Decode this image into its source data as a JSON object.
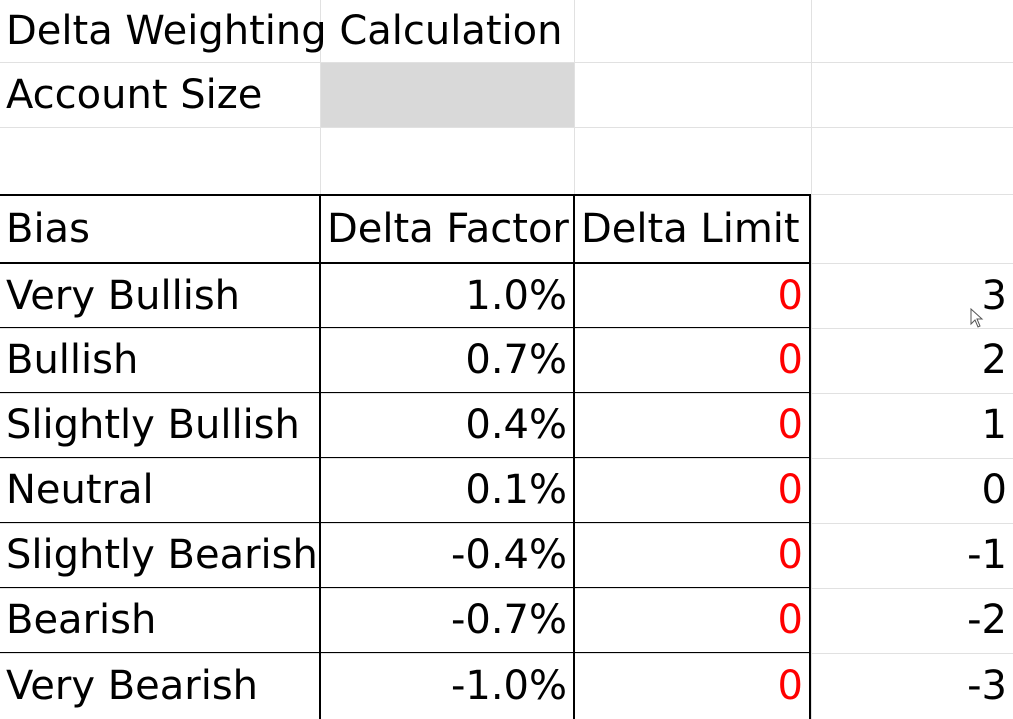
{
  "title": "Delta Weighting Calculation",
  "account_size": {
    "label": "Account Size",
    "value": ""
  },
  "table": {
    "headers": [
      "Bias",
      "Delta Factor",
      "Delta Limit"
    ],
    "rows": [
      {
        "bias": "Very Bullish",
        "factor": "1.0%",
        "limit": "0",
        "score": "3"
      },
      {
        "bias": "Bullish",
        "factor": "0.7%",
        "limit": "0",
        "score": "2"
      },
      {
        "bias": "Slightly Bullish",
        "factor": "0.4%",
        "limit": "0",
        "score": "1"
      },
      {
        "bias": "Neutral",
        "factor": "0.1%",
        "limit": "0",
        "score": "0"
      },
      {
        "bias": "Slightly Bearish",
        "factor": "-0.4%",
        "limit": "0",
        "score": "-1"
      },
      {
        "bias": "Bearish",
        "factor": "-0.7%",
        "limit": "0",
        "score": "-2"
      },
      {
        "bias": "Very Bearish",
        "factor": "-1.0%",
        "limit": "0",
        "score": "-3"
      }
    ]
  },
  "colors": {
    "limit_text": "#ff0000",
    "input_fill": "#d9d9d9",
    "gridline": "#e1e1e1"
  },
  "icons": {
    "cursor": "mouse-pointer-icon"
  }
}
